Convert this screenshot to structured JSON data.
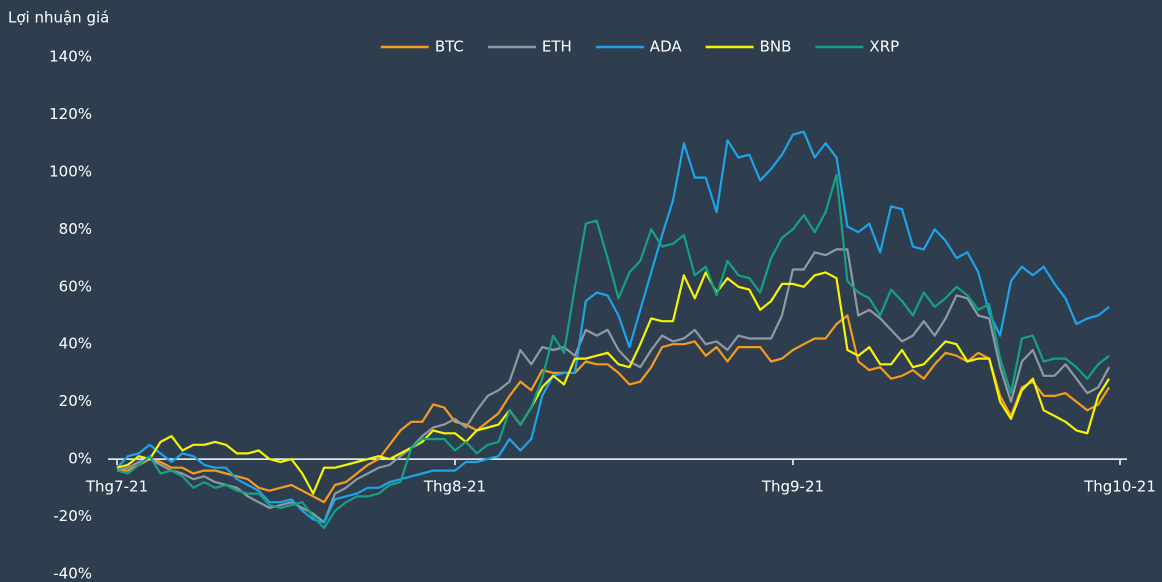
{
  "chart_data": {
    "type": "line",
    "y_label": "Lợi nhuận giá",
    "categories": [
      "Thg7-21",
      null,
      null,
      null,
      null,
      null,
      null,
      null,
      null,
      null,
      null,
      null,
      null,
      null,
      null,
      null,
      null,
      null,
      null,
      null,
      null,
      null,
      null,
      null,
      null,
      null,
      null,
      null,
      null,
      null,
      null,
      "Thg8-21",
      null,
      null,
      null,
      null,
      null,
      null,
      null,
      null,
      null,
      null,
      null,
      null,
      null,
      null,
      null,
      null,
      null,
      null,
      null,
      null,
      null,
      null,
      null,
      null,
      null,
      null,
      null,
      null,
      null,
      null,
      "Thg9-21",
      null,
      null,
      null,
      null,
      null,
      null,
      null,
      null,
      null,
      null,
      null,
      null,
      null,
      null,
      null,
      null,
      null,
      null,
      null,
      null,
      null,
      null,
      null,
      null,
      null,
      null,
      null,
      null,
      null,
      "Thg10-21"
    ],
    "series": [
      {
        "name": "BTC",
        "color": "#f39c1f",
        "values": [
          -4,
          -4,
          -2,
          0,
          -1,
          -3,
          -3,
          -5,
          -4,
          -4,
          -5,
          -6,
          -7,
          -10,
          -11,
          -10,
          -9,
          -11,
          -13,
          -15,
          -9,
          -8,
          -5,
          -2,
          0,
          5,
          10,
          13,
          13,
          19,
          18,
          13,
          12,
          10,
          13,
          16,
          22,
          27,
          24,
          31,
          30,
          30,
          30,
          34,
          33,
          33,
          30,
          26,
          27,
          32,
          39,
          40,
          40,
          41,
          36,
          39,
          34,
          39,
          39,
          39,
          34,
          35,
          38,
          40,
          42,
          42,
          47,
          50,
          34,
          31,
          32,
          28,
          29,
          31,
          28,
          33,
          37,
          36,
          34,
          37,
          35,
          22,
          15,
          25,
          27,
          22,
          22,
          23,
          20,
          17,
          19,
          25,
          null
        ]
      },
      {
        "name": "ETH",
        "color": "#8e9aa3",
        "values": [
          -4,
          -3,
          -1,
          0,
          -2,
          -4,
          -5,
          -7,
          -6,
          -8,
          -9,
          -10,
          -13,
          -15,
          -17,
          -16,
          -15,
          -17,
          -19,
          -22,
          -12,
          -10,
          -7,
          -5,
          -3,
          -2,
          1,
          4,
          8,
          11,
          12,
          14,
          11,
          17,
          22,
          24,
          27,
          38,
          33,
          39,
          38,
          39,
          36,
          45,
          43,
          45,
          38,
          34,
          32,
          38,
          43,
          41,
          42,
          45,
          40,
          41,
          38,
          43,
          42,
          42,
          42,
          50,
          66,
          66,
          72,
          71,
          73,
          73,
          50,
          52,
          49,
          45,
          41,
          43,
          48,
          43,
          49,
          57,
          56,
          50,
          49,
          32,
          20,
          34,
          38,
          29,
          29,
          33,
          28,
          23,
          25,
          32,
          null
        ]
      },
      {
        "name": "ADA",
        "color": "#1fa3e8",
        "values": [
          -3,
          1,
          2,
          5,
          2,
          -1,
          2,
          1,
          -2,
          -3,
          -3,
          -7,
          -9,
          -11,
          -15,
          -15,
          -14,
          -18,
          -21,
          -22,
          -14,
          -13,
          -12,
          -10,
          -10,
          -8,
          -7,
          -6,
          -5,
          -4,
          -4,
          -4,
          -1,
          -1,
          0,
          1,
          7,
          3,
          7,
          22,
          29,
          30,
          30,
          55,
          58,
          57,
          50,
          39,
          52,
          65,
          78,
          90,
          110,
          98,
          98,
          86,
          111,
          105,
          106,
          97,
          101,
          106,
          113,
          114,
          105,
          110,
          105,
          81,
          79,
          82,
          72,
          88,
          87,
          74,
          73,
          80,
          76,
          70,
          72,
          65,
          51,
          43,
          62,
          67,
          64,
          67,
          61,
          56,
          47,
          49,
          50,
          53,
          null
        ]
      },
      {
        "name": "BNB",
        "color": "#f5f500",
        "values": [
          -3,
          -2,
          1,
          0,
          6,
          8,
          3,
          5,
          5,
          6,
          5,
          2,
          2,
          3,
          0,
          -1,
          0,
          -5,
          -12,
          -3,
          -3,
          -2,
          -1,
          0,
          1,
          0,
          2,
          4,
          6,
          10,
          9,
          9,
          6,
          10,
          11,
          12,
          17,
          12,
          18,
          25,
          29,
          26,
          35,
          35,
          36,
          37,
          33,
          32,
          40,
          49,
          48,
          48,
          64,
          56,
          65,
          58,
          63,
          60,
          59,
          52,
          55,
          61,
          61,
          60,
          64,
          65,
          63,
          38,
          36,
          39,
          33,
          33,
          38,
          32,
          33,
          37,
          41,
          40,
          34,
          35,
          35,
          20,
          14,
          24,
          28,
          17,
          15,
          13,
          10,
          9,
          22,
          28,
          null
        ]
      },
      {
        "name": "XRP",
        "color": "#16a085",
        "values": [
          -4,
          -5,
          -2,
          1,
          -5,
          -4,
          -6,
          -10,
          -8,
          -10,
          -9,
          -11,
          -12,
          -12,
          -16,
          -17,
          -16,
          -15,
          -20,
          -24,
          -18,
          -15,
          -13,
          -13,
          -12,
          -9,
          -8,
          4,
          7,
          7,
          7,
          3,
          6,
          2,
          5,
          6,
          17,
          12,
          18,
          28,
          43,
          37,
          60,
          82,
          83,
          70,
          56,
          65,
          69,
          80,
          74,
          75,
          78,
          64,
          67,
          57,
          69,
          64,
          63,
          58,
          70,
          77,
          80,
          85,
          79,
          86,
          99,
          62,
          58,
          56,
          50,
          59,
          55,
          50,
          58,
          53,
          56,
          60,
          57,
          52,
          54,
          35,
          23,
          42,
          43,
          34,
          35,
          35,
          32,
          28,
          33,
          36,
          null
        ]
      }
    ],
    "ylim": [
      -40,
      140
    ],
    "yticks": [
      {
        "value": -40,
        "label": "-40%"
      },
      {
        "value": -20,
        "label": "-20%"
      },
      {
        "value": 0,
        "label": "0%"
      },
      {
        "value": 20,
        "label": "20%"
      },
      {
        "value": 40,
        "label": "40%"
      },
      {
        "value": 60,
        "label": "60%"
      },
      {
        "value": 80,
        "label": "80%"
      },
      {
        "value": 100,
        "label": "100%"
      },
      {
        "value": 120,
        "label": "120%"
      },
      {
        "value": 140,
        "label": "140%"
      }
    ],
    "legend": "top"
  }
}
